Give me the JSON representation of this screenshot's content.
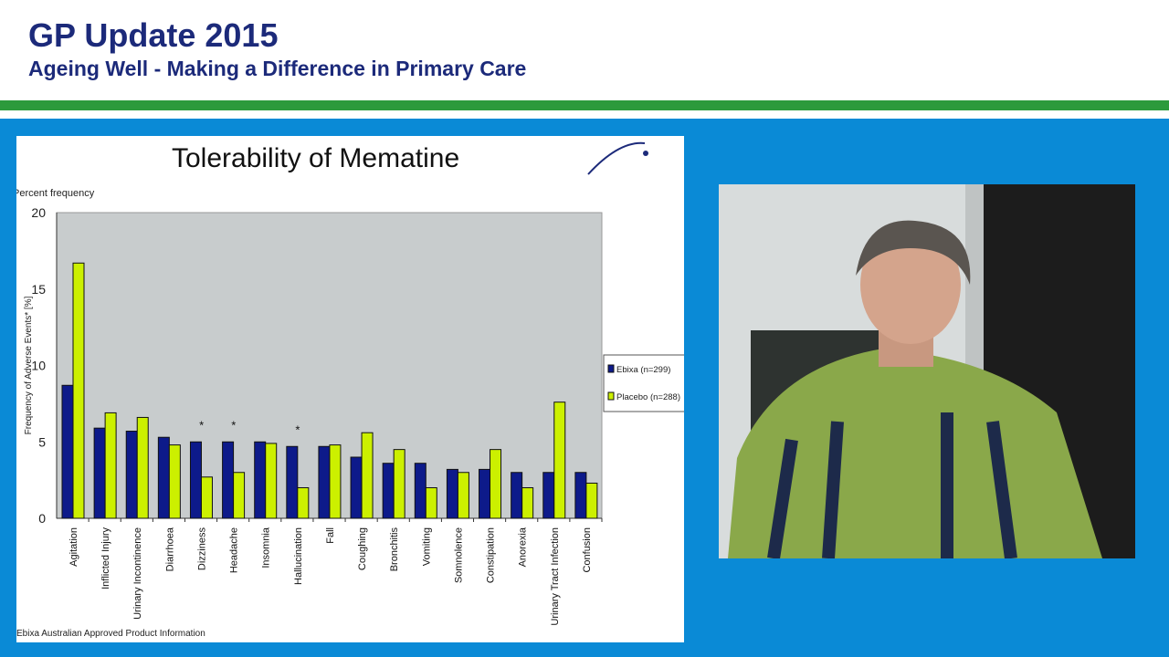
{
  "header": {
    "title": "GP Update 2015",
    "subtitle": "Ageing Well - Making a Difference in Primary Care"
  },
  "slide": {
    "title": "Tolerability of Mematine",
    "note_top": "Percent frequency",
    "source": "Ebixa Australian Approved Product Information"
  },
  "colors": {
    "brand": "#1c2a7a",
    "accent_green": "#2c9a3c",
    "background": "#0a8ad6",
    "ebixa": "#0d1a8a",
    "placebo": "#ccf000",
    "plot_bg": "#c8cccd"
  },
  "video": {
    "description_icon": "presenter-video"
  },
  "chart_data": {
    "type": "bar",
    "title": "Tolerability of Mematine",
    "ylabel": "Frequency of Adverse Events* [%]",
    "xlabel": "",
    "ylim": [
      0,
      20
    ],
    "yticks": [
      0,
      5,
      10,
      15,
      20
    ],
    "grid": false,
    "legend_position": "right",
    "categories": [
      "Agitation",
      "Inflicted Injury",
      "Urinary Incontinence",
      "Diarrhoea",
      "Dizziness",
      "Headache",
      "Insomnia",
      "Hallucination",
      "Fall",
      "Coughing",
      "Bronchitis",
      "Vomiting",
      "Somnolence",
      "Constipation",
      "Anorexia",
      "Urinary Tract Infection",
      "Confusion"
    ],
    "significant": [
      false,
      false,
      false,
      false,
      true,
      true,
      false,
      true,
      false,
      false,
      false,
      false,
      false,
      false,
      false,
      false,
      false
    ],
    "significance_marker": "*",
    "series": [
      {
        "name": "Ebixa (n=299)",
        "color": "#0d1a8a",
        "values": [
          8.7,
          5.9,
          5.7,
          5.3,
          5.0,
          5.0,
          5.0,
          4.7,
          4.7,
          4.0,
          3.6,
          3.6,
          3.2,
          3.2,
          3.0,
          3.0,
          3.0
        ]
      },
      {
        "name": "Placebo (n=288)",
        "color": "#ccf000",
        "values": [
          16.7,
          6.9,
          6.6,
          4.8,
          2.7,
          3.0,
          4.9,
          2.0,
          4.8,
          5.6,
          4.5,
          2.0,
          3.0,
          4.5,
          2.0,
          7.6,
          2.3
        ]
      }
    ]
  }
}
